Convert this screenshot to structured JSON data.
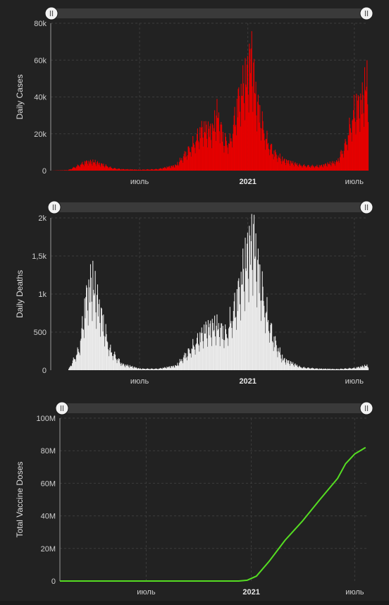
{
  "charts": [
    {
      "type": "bar",
      "ylabel": "Daily Cases",
      "color": "#e60000",
      "ylim": [
        0,
        80000
      ],
      "y_ticks": [
        "0",
        "20k",
        "40k",
        "60k",
        "80k"
      ],
      "x_ticks": [
        "июль",
        "2021",
        "июль"
      ],
      "bold_x_tick": "2021",
      "grid": true,
      "has_range_slider": true
    },
    {
      "type": "bar",
      "ylabel": "Daily Deaths",
      "color": "#ebebeb",
      "ylim": [
        0,
        2000
      ],
      "y_ticks": [
        "0",
        "500",
        "1k",
        "1,5k",
        "2k"
      ],
      "x_ticks": [
        "июль",
        "2021",
        "июль"
      ],
      "bold_x_tick": "2021",
      "grid": true,
      "has_range_slider": true
    },
    {
      "type": "line",
      "ylabel": "Total Vaccine Doses",
      "color": "#55dd22",
      "ylim": [
        0,
        100000000
      ],
      "y_ticks": [
        "0",
        "20M",
        "40M",
        "60M",
        "80M",
        "100M"
      ],
      "x_ticks": [
        "июль",
        "2021",
        "июль"
      ],
      "bold_x_tick": "2021",
      "grid": true,
      "has_range_slider": true
    }
  ],
  "chart_data": [
    {
      "type": "bar",
      "series_name": "Daily Cases",
      "x": [
        "2020-02-01",
        "2020-03-01",
        "2020-03-15",
        "2020-04-01",
        "2020-04-15",
        "2020-05-01",
        "2020-05-15",
        "2020-06-01",
        "2020-07-01",
        "2020-08-01",
        "2020-09-01",
        "2020-10-01",
        "2020-10-15",
        "2020-11-01",
        "2020-11-10",
        "2020-11-20",
        "2020-12-01",
        "2020-12-15",
        "2021-01-01",
        "2021-01-06",
        "2021-01-15",
        "2021-02-01",
        "2021-02-15",
        "2021-03-01",
        "2021-04-01",
        "2021-05-01",
        "2021-06-01",
        "2021-06-15",
        "2021-07-01",
        "2021-07-15",
        "2021-07-20"
      ],
      "values": [
        0,
        300,
        2500,
        5000,
        4800,
        3200,
        1500,
        800,
        500,
        900,
        3000,
        16000,
        24000,
        22000,
        33000,
        18000,
        16000,
        40000,
        55000,
        67000,
        40000,
        18000,
        10000,
        6000,
        3000,
        2500,
        5000,
        15000,
        35000,
        40000,
        48000
      ],
      "ylim": [
        0,
        80000
      ],
      "ylabel": "Daily Cases"
    },
    {
      "type": "bar",
      "series_name": "Daily Deaths",
      "x": [
        "2020-02-01",
        "2020-03-01",
        "2020-03-20",
        "2020-04-01",
        "2020-04-10",
        "2020-04-25",
        "2020-05-10",
        "2020-06-01",
        "2020-07-01",
        "2020-08-01",
        "2020-09-01",
        "2020-10-01",
        "2020-10-20",
        "2020-11-10",
        "2020-11-25",
        "2020-12-10",
        "2021-01-01",
        "2021-01-10",
        "2021-01-20",
        "2021-02-01",
        "2021-02-15",
        "2021-03-01",
        "2021-04-01",
        "2021-05-01",
        "2021-06-01",
        "2021-07-01",
        "2021-07-20"
      ],
      "values": [
        0,
        0,
        300,
        1000,
        1200,
        800,
        300,
        80,
        20,
        20,
        60,
        350,
        550,
        600,
        500,
        900,
        1600,
        1800,
        1300,
        800,
        400,
        150,
        40,
        20,
        15,
        30,
        60
      ],
      "ylim": [
        0,
        2000
      ],
      "ylabel": "Daily Deaths"
    },
    {
      "type": "line",
      "series_name": "Total Vaccine Doses",
      "x": [
        "2020-02-01",
        "2020-12-10",
        "2020-12-25",
        "2021-01-10",
        "2021-02-01",
        "2021-03-01",
        "2021-04-01",
        "2021-05-01",
        "2021-06-01",
        "2021-06-15",
        "2021-07-01",
        "2021-07-20"
      ],
      "values": [
        0,
        0,
        500000,
        3000000,
        12000000,
        25000000,
        37000000,
        50000000,
        63000000,
        72000000,
        78000000,
        82000000
      ],
      "ylim": [
        0,
        100000000
      ],
      "ylabel": "Total Vaccine Doses"
    }
  ]
}
